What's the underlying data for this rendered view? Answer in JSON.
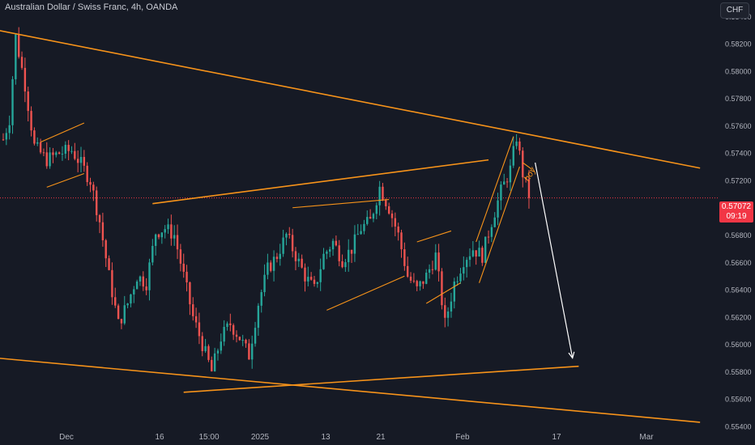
{
  "header": {
    "symbol_title": "Australian Dollar / Swiss Franc, 4h, OANDA",
    "currency": "CHF"
  },
  "last_price": {
    "price": "0.57072",
    "countdown": "09:19"
  },
  "annotation": {
    "text": "hoy"
  },
  "colors": {
    "background": "#161a25",
    "up": "#26a69a",
    "down": "#ef5350",
    "trendline": "#f7931a",
    "price_line": "#f23645",
    "arrow": "#ffffff",
    "axis_text": "#b2b5be"
  },
  "chart_data": {
    "type": "candlestick",
    "timeframe": "4h",
    "y_axis": {
      "side": "right",
      "range": [
        0.554,
        0.5852
      ],
      "ticks": [
        "0.58400",
        "0.58200",
        "0.58000",
        "0.57800",
        "0.57600",
        "0.57400",
        "0.57200",
        "0.57000",
        "0.56800",
        "0.56600",
        "0.56400",
        "0.56200",
        "0.56000",
        "0.55800",
        "0.55600",
        "0.55400"
      ]
    },
    "x_axis": {
      "ticks": [
        "Dec",
        "16",
        "15:00",
        "2025",
        "13",
        "21",
        "Feb",
        "17",
        "Mar"
      ]
    },
    "close_path": [
      {
        "t": 0,
        "p": 0.575
      },
      {
        "t": 2,
        "p": 0.5765
      },
      {
        "t": 4,
        "p": 0.5825
      },
      {
        "t": 7,
        "p": 0.579
      },
      {
        "t": 10,
        "p": 0.5745
      },
      {
        "t": 14,
        "p": 0.5735
      },
      {
        "t": 18,
        "p": 0.574
      },
      {
        "t": 22,
        "p": 0.5742
      },
      {
        "t": 25,
        "p": 0.5732
      },
      {
        "t": 28,
        "p": 0.572
      },
      {
        "t": 31,
        "p": 0.569
      },
      {
        "t": 34,
        "p": 0.565
      },
      {
        "t": 37,
        "p": 0.5615
      },
      {
        "t": 40,
        "p": 0.563
      },
      {
        "t": 43,
        "p": 0.565
      },
      {
        "t": 46,
        "p": 0.5645
      },
      {
        "t": 49,
        "p": 0.5682
      },
      {
        "t": 52,
        "p": 0.5685
      },
      {
        "t": 55,
        "p": 0.568
      },
      {
        "t": 58,
        "p": 0.565
      },
      {
        "t": 61,
        "p": 0.562
      },
      {
        "t": 64,
        "p": 0.56
      },
      {
        "t": 67,
        "p": 0.558
      },
      {
        "t": 70,
        "p": 0.5605
      },
      {
        "t": 73,
        "p": 0.5615
      },
      {
        "t": 76,
        "p": 0.5605
      },
      {
        "t": 79,
        "p": 0.5592
      },
      {
        "t": 82,
        "p": 0.563
      },
      {
        "t": 85,
        "p": 0.5655
      },
      {
        "t": 88,
        "p": 0.5665
      },
      {
        "t": 91,
        "p": 0.568
      },
      {
        "t": 94,
        "p": 0.5665
      },
      {
        "t": 97,
        "p": 0.565
      },
      {
        "t": 100,
        "p": 0.564
      },
      {
        "t": 103,
        "p": 0.5665
      },
      {
        "t": 106,
        "p": 0.5675
      },
      {
        "t": 109,
        "p": 0.5662
      },
      {
        "t": 112,
        "p": 0.567
      },
      {
        "t": 115,
        "p": 0.5685
      },
      {
        "t": 118,
        "p": 0.569
      },
      {
        "t": 121,
        "p": 0.5715
      },
      {
        "t": 124,
        "p": 0.57
      },
      {
        "t": 127,
        "p": 0.568
      },
      {
        "t": 130,
        "p": 0.565
      },
      {
        "t": 133,
        "p": 0.564
      },
      {
        "t": 136,
        "p": 0.565
      },
      {
        "t": 139,
        "p": 0.5665
      },
      {
        "t": 142,
        "p": 0.5615
      },
      {
        "t": 145,
        "p": 0.5645
      },
      {
        "t": 148,
        "p": 0.5662
      },
      {
        "t": 151,
        "p": 0.567
      },
      {
        "t": 154,
        "p": 0.5665
      },
      {
        "t": 157,
        "p": 0.569
      },
      {
        "t": 160,
        "p": 0.5712
      },
      {
        "t": 163,
        "p": 0.5728
      },
      {
        "t": 165,
        "p": 0.5752
      },
      {
        "t": 167,
        "p": 0.5725
      },
      {
        "t": 169,
        "p": 0.5707
      }
    ],
    "candle_count": 170,
    "last_price": 0.57072,
    "trendlines": [
      {
        "from": {
          "t": -2,
          "p": 0.583
        },
        "to": {
          "t": 224,
          "p": 0.5729
        }
      },
      {
        "from": {
          "t": -2,
          "p": 0.559
        },
        "to": {
          "t": 224,
          "p": 0.5543
        }
      },
      {
        "from": {
          "t": 48,
          "p": 0.5703
        },
        "to": {
          "t": 156,
          "p": 0.5735
        }
      },
      {
        "from": {
          "t": 58,
          "p": 0.5565
        },
        "to": {
          "t": 185,
          "p": 0.5584
        }
      },
      {
        "from": {
          "t": 12,
          "p": 0.5748
        },
        "to": {
          "t": 26,
          "p": 0.5762
        }
      },
      {
        "from": {
          "t": 14,
          "p": 0.5715
        },
        "to": {
          "t": 26,
          "p": 0.5725
        }
      },
      {
        "from": {
          "t": 93,
          "p": 0.57
        },
        "to": {
          "t": 124,
          "p": 0.5706
        }
      },
      {
        "from": {
          "t": 104,
          "p": 0.5625
        },
        "to": {
          "t": 129,
          "p": 0.565
        }
      },
      {
        "from": {
          "t": 133,
          "p": 0.5675
        },
        "to": {
          "t": 144,
          "p": 0.5683
        }
      },
      {
        "from": {
          "t": 136,
          "p": 0.563
        },
        "to": {
          "t": 147,
          "p": 0.5645
        }
      },
      {
        "from": {
          "t": 152,
          "p": 0.5675
        },
        "to": {
          "t": 164,
          "p": 0.5752
        }
      },
      {
        "from": {
          "t": 153,
          "p": 0.5645
        },
        "to": {
          "t": 166,
          "p": 0.573
        }
      },
      {
        "from": {
          "t": 167,
          "p": 0.5733
        },
        "to": {
          "t": 170,
          "p": 0.5728
        }
      }
    ],
    "projection_arrow": {
      "from": {
        "t": 171,
        "p": 0.5733
      },
      "to": {
        "t": 183,
        "p": 0.559
      }
    },
    "grid": false,
    "legend": "none"
  }
}
